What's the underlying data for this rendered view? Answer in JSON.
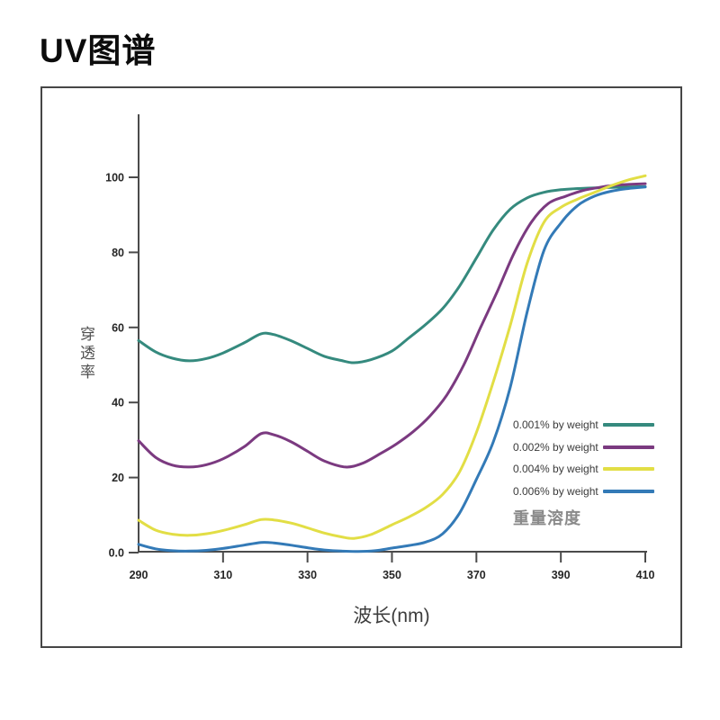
{
  "title": "UV图谱",
  "chart_data": {
    "type": "line",
    "title": "UV图谱",
    "xlabel": "波长(nm)",
    "ylabel": "穿透率",
    "legend_title": "重量溶度",
    "legend_position": "inside-right",
    "grid": false,
    "xlim": [
      290,
      410
    ],
    "ylim": [
      0,
      105
    ],
    "xticks": [
      290,
      310,
      330,
      350,
      370,
      390,
      410
    ],
    "yticks": [
      0,
      20,
      40,
      60,
      80,
      100
    ],
    "ytick_labels": [
      "0.0",
      "20",
      "40",
      "60",
      "80",
      "100"
    ],
    "axis_color": "#4b4b4b",
    "series": [
      {
        "name": "0.001% by weight",
        "color": "#358a7e",
        "points": [
          [
            290,
            56.5
          ],
          [
            294,
            53.5
          ],
          [
            298,
            51.8
          ],
          [
            302,
            51.1
          ],
          [
            306,
            51.7
          ],
          [
            310,
            53.2
          ],
          [
            315,
            55.9
          ],
          [
            319,
            58.3
          ],
          [
            322,
            58.1
          ],
          [
            326,
            56.5
          ],
          [
            330,
            54.4
          ],
          [
            334,
            52.3
          ],
          [
            338,
            51.2
          ],
          [
            341,
            50.6
          ],
          [
            345,
            51.4
          ],
          [
            350,
            53.7
          ],
          [
            354,
            57.2
          ],
          [
            358,
            60.8
          ],
          [
            362,
            65
          ],
          [
            366,
            71
          ],
          [
            370,
            78.5
          ],
          [
            374,
            86
          ],
          [
            378,
            91.5
          ],
          [
            382,
            94.5
          ],
          [
            386,
            96
          ],
          [
            390,
            96.7
          ],
          [
            394,
            97
          ],
          [
            398,
            97.2
          ],
          [
            402,
            97.3
          ],
          [
            406,
            97.4
          ],
          [
            410,
            97.5
          ]
        ]
      },
      {
        "name": "0.002% by weight",
        "color": "#7b3a80",
        "points": [
          [
            290,
            29.8
          ],
          [
            294,
            25.4
          ],
          [
            298,
            23.3
          ],
          [
            302,
            22.8
          ],
          [
            306,
            23.4
          ],
          [
            310,
            25
          ],
          [
            315,
            28.2
          ],
          [
            319,
            31.7
          ],
          [
            322,
            31.4
          ],
          [
            326,
            29.6
          ],
          [
            330,
            27
          ],
          [
            334,
            24.4
          ],
          [
            339,
            22.8
          ],
          [
            343,
            23.8
          ],
          [
            347,
            26.2
          ],
          [
            351,
            28.9
          ],
          [
            355,
            32.2
          ],
          [
            359,
            36.4
          ],
          [
            363,
            42
          ],
          [
            367,
            50
          ],
          [
            371,
            60
          ],
          [
            375,
            69.7
          ],
          [
            379,
            80
          ],
          [
            383,
            88
          ],
          [
            387,
            93
          ],
          [
            391,
            94.9
          ],
          [
            395,
            96.4
          ],
          [
            399,
            97.3
          ],
          [
            403,
            97.9
          ],
          [
            406,
            98.1
          ],
          [
            410,
            98.3
          ]
        ]
      },
      {
        "name": "0.004% by weight",
        "color": "#e2de45",
        "points": [
          [
            290,
            8.6
          ],
          [
            294,
            6
          ],
          [
            298,
            4.9
          ],
          [
            302,
            4.6
          ],
          [
            306,
            5
          ],
          [
            310,
            5.9
          ],
          [
            315,
            7.4
          ],
          [
            319,
            8.8
          ],
          [
            322,
            8.7
          ],
          [
            326,
            7.9
          ],
          [
            330,
            6.6
          ],
          [
            334,
            5.2
          ],
          [
            338,
            4.2
          ],
          [
            341,
            3.8
          ],
          [
            345,
            4.8
          ],
          [
            350,
            7.4
          ],
          [
            354,
            9.5
          ],
          [
            358,
            12
          ],
          [
            362,
            15.5
          ],
          [
            366,
            21.5
          ],
          [
            370,
            32
          ],
          [
            374,
            45.5
          ],
          [
            378,
            60.5
          ],
          [
            382,
            77
          ],
          [
            386,
            88
          ],
          [
            390,
            92
          ],
          [
            394,
            94.2
          ],
          [
            398,
            96
          ],
          [
            402,
            97.8
          ],
          [
            406,
            99.3
          ],
          [
            410,
            100.4
          ]
        ]
      },
      {
        "name": "0.006% by weight",
        "color": "#337ab7",
        "points": [
          [
            290,
            2.2
          ],
          [
            294,
            1
          ],
          [
            298,
            0.5
          ],
          [
            302,
            0.4
          ],
          [
            306,
            0.6
          ],
          [
            310,
            1.1
          ],
          [
            315,
            2
          ],
          [
            319,
            2.7
          ],
          [
            322,
            2.6
          ],
          [
            326,
            2
          ],
          [
            330,
            1.3
          ],
          [
            334,
            0.7
          ],
          [
            338,
            0.4
          ],
          [
            342,
            0.3
          ],
          [
            346,
            0.5
          ],
          [
            350,
            1.2
          ],
          [
            354,
            1.9
          ],
          [
            358,
            2.8
          ],
          [
            362,
            5
          ],
          [
            366,
            10.5
          ],
          [
            370,
            19.5
          ],
          [
            374,
            29.5
          ],
          [
            378,
            44
          ],
          [
            382,
            64
          ],
          [
            386,
            80.5
          ],
          [
            390,
            87.8
          ],
          [
            394,
            92.5
          ],
          [
            398,
            95
          ],
          [
            402,
            96.3
          ],
          [
            406,
            97
          ],
          [
            410,
            97.4
          ]
        ]
      }
    ]
  }
}
